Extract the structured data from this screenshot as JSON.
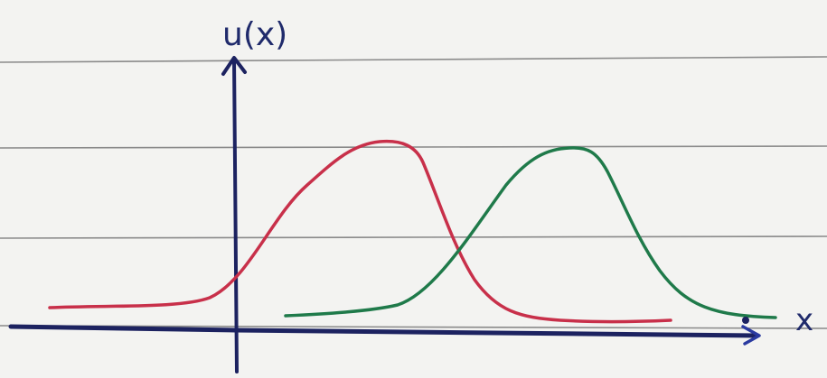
{
  "labels": {
    "y_axis": "u(x)",
    "x_axis": "x"
  }
}
